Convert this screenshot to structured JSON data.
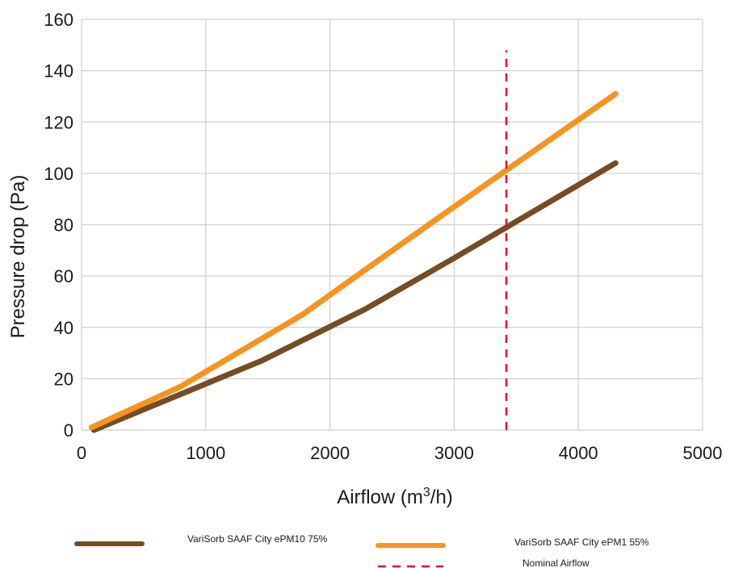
{
  "chart_data": {
    "type": "line",
    "xlabel": "Airflow (m",
    "xlabel_sup": "3",
    "xlabel_tail": "/h)",
    "ylabel": "Pressure drop (Pa)",
    "xlim": [
      0,
      5000
    ],
    "ylim": [
      0,
      160
    ],
    "x_ticks": [
      "0",
      "1000",
      "2000",
      "3000",
      "4000",
      "5000"
    ],
    "y_ticks": [
      "0",
      "20",
      "40",
      "60",
      "80",
      "100",
      "120",
      "140",
      "160"
    ],
    "grid": true,
    "legend_position": "bottom",
    "series": [
      {
        "name": "VariSorb SAAF City ePM10 75%",
        "color": "#754c24",
        "style": "solid",
        "x": [
          100,
          800,
          1450,
          2280,
          3000,
          4300
        ],
        "y": [
          0,
          14,
          27,
          47,
          67,
          104
        ]
      },
      {
        "name": "VariSorb SAAF City ePM1 55%",
        "color": "#f7941d",
        "style": "solid",
        "x": [
          80,
          800,
          1780,
          2300,
          3000,
          4300
        ],
        "y": [
          1,
          17,
          45,
          63,
          87,
          131
        ]
      },
      {
        "name": "Nominal Airflow",
        "color": "#e8112d",
        "style": "dashed",
        "x": [
          3420,
          3420
        ],
        "y": [
          0,
          148
        ]
      }
    ]
  }
}
